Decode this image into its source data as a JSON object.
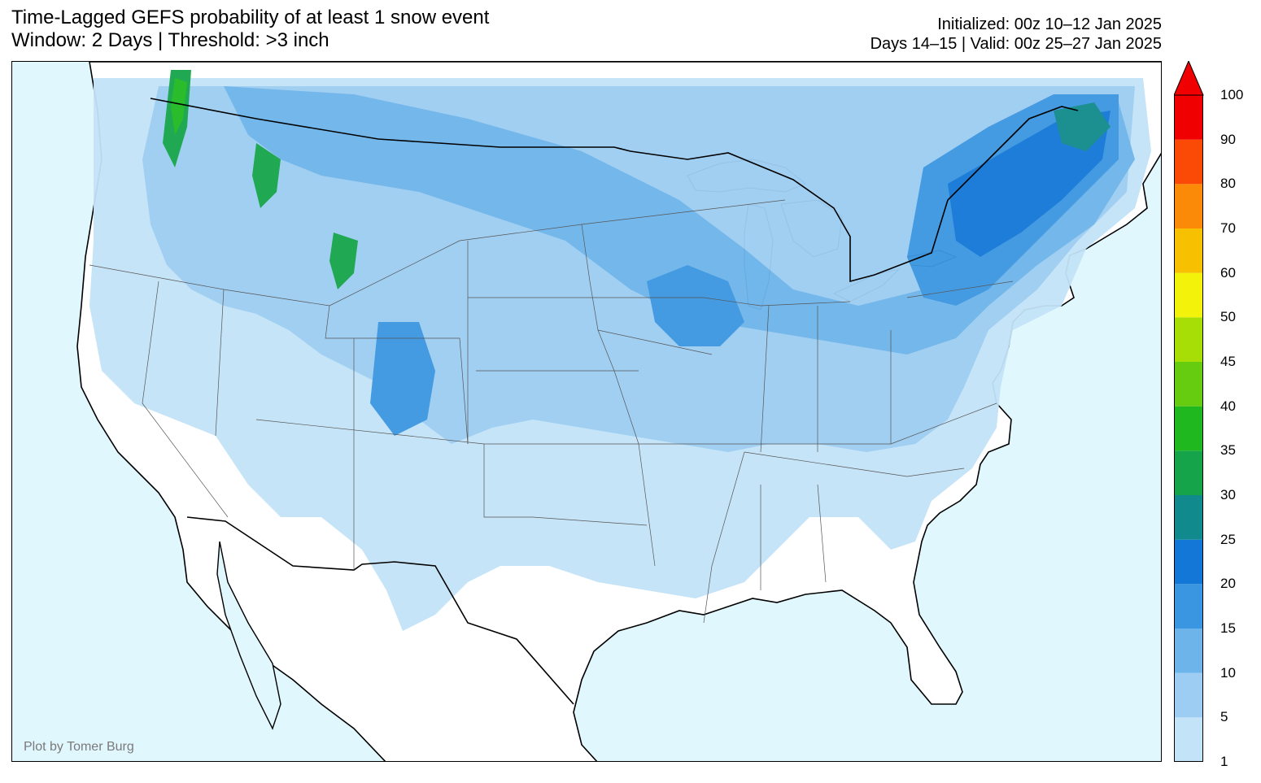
{
  "header": {
    "title_line1": "Time-Lagged GEFS probability of at least 1 snow event",
    "title_line2": "Window: 2 Days | Threshold: >3 inch",
    "init_text": "Initialized: 00z 10–12 Jan 2025",
    "valid_text": "Days 14–15 | Valid: 00z 25–27 Jan 2025"
  },
  "credit": "Plot by Tomer Burg",
  "colorbar": {
    "levels": [
      "1",
      "5",
      "10",
      "15",
      "20",
      "25",
      "30",
      "35",
      "40",
      "45",
      "50",
      "60",
      "70",
      "80",
      "90",
      "100"
    ],
    "colors": [
      "#c3e3f8",
      "#9dcdf2",
      "#6db4ea",
      "#3a96e0",
      "#1277d6",
      "#108a8c",
      "#16a44a",
      "#1fb91f",
      "#66cc10",
      "#a6de06",
      "#f2f20a",
      "#f7c000",
      "#fa8a08",
      "#fb4a05",
      "#f00000"
    ]
  },
  "map": {
    "ocean_color": "#e1f7fe",
    "land_color": "#ffffff",
    "region": "CONUS"
  }
}
